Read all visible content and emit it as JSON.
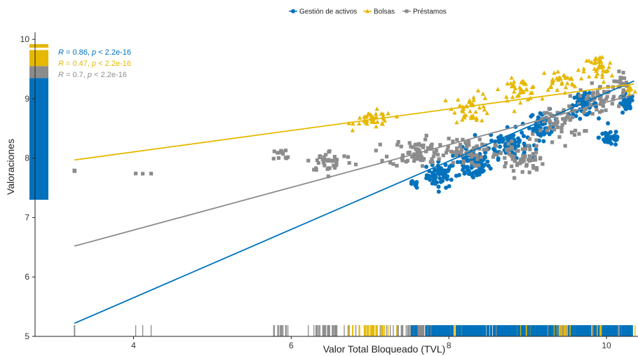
{
  "chart_data": {
    "type": "scatter",
    "xlabel": "Valor Total Bloqueado (TVL)",
    "ylabel": "Valoraciones",
    "xlim": [
      2.75,
      10.4
    ],
    "ylim": [
      5.0,
      10.12
    ],
    "xticks": [
      4,
      6,
      8,
      10
    ],
    "yticks": [
      5,
      6,
      7,
      8,
      9,
      10
    ],
    "grid": false,
    "legend_position": "top",
    "series": [
      {
        "name": "Gestión de activos",
        "color": "#0072BD",
        "marker": "circle",
        "trend": {
          "x0": 3.25,
          "y0": 5.22,
          "x1": 10.35,
          "y1": 9.3
        },
        "annotation": {
          "r": "0.86",
          "p": "< 2.2e-16"
        },
        "clusters": [
          {
            "cx": 7.9,
            "cy": 7.72,
            "sx": 0.15,
            "sy": 0.18,
            "n": 55
          },
          {
            "cx": 8.3,
            "cy": 7.9,
            "sx": 0.18,
            "sy": 0.22,
            "n": 90
          },
          {
            "cx": 8.75,
            "cy": 8.25,
            "sx": 0.2,
            "sy": 0.2,
            "n": 80
          },
          {
            "cx": 9.2,
            "cy": 8.55,
            "sx": 0.15,
            "sy": 0.2,
            "n": 60
          },
          {
            "cx": 9.7,
            "cy": 8.9,
            "sx": 0.15,
            "sy": 0.15,
            "n": 55
          },
          {
            "cx": 10.05,
            "cy": 8.35,
            "sx": 0.12,
            "sy": 0.12,
            "n": 40
          },
          {
            "cx": 10.25,
            "cy": 8.9,
            "sx": 0.08,
            "sy": 0.15,
            "n": 30
          },
          {
            "cx": 7.55,
            "cy": 7.55,
            "sx": 0.05,
            "sy": 0.05,
            "n": 8
          }
        ]
      },
      {
        "name": "Bolsas",
        "color": "#E6B800",
        "marker": "triangle",
        "trend": {
          "x0": 3.25,
          "y0": 7.97,
          "x1": 10.35,
          "y1": 9.25
        },
        "annotation": {
          "r": "0.47",
          "p": "< 2.2e-16"
        },
        "clusters": [
          {
            "cx": 7.05,
            "cy": 8.65,
            "sx": 0.2,
            "sy": 0.12,
            "n": 40
          },
          {
            "cx": 8.3,
            "cy": 8.85,
            "sx": 0.2,
            "sy": 0.2,
            "n": 40
          },
          {
            "cx": 8.9,
            "cy": 9.15,
            "sx": 0.2,
            "sy": 0.15,
            "n": 40
          },
          {
            "cx": 9.4,
            "cy": 9.3,
            "sx": 0.2,
            "sy": 0.15,
            "n": 35
          },
          {
            "cx": 9.9,
            "cy": 9.5,
            "sx": 0.15,
            "sy": 0.2,
            "n": 35
          },
          {
            "cx": 10.3,
            "cy": 9.15,
            "sx": 0.06,
            "sy": 0.12,
            "n": 12
          }
        ]
      },
      {
        "name": "Préstamos",
        "color": "#8C8C8C",
        "marker": "square",
        "trend": {
          "x0": 3.25,
          "y0": 6.52,
          "x1": 10.35,
          "y1": 9.07
        },
        "annotation": {
          "r": "0.7",
          "p": "< 2.2e-16"
        },
        "clusters": [
          {
            "cx": 3.25,
            "cy": 7.8,
            "sx": 0.01,
            "sy": 0.05,
            "n": 3
          },
          {
            "cx": 4.1,
            "cy": 7.74,
            "sx": 0.12,
            "sy": 0.02,
            "n": 3
          },
          {
            "cx": 5.9,
            "cy": 8.05,
            "sx": 0.12,
            "sy": 0.1,
            "n": 12
          },
          {
            "cx": 6.5,
            "cy": 7.95,
            "sx": 0.25,
            "sy": 0.15,
            "n": 40
          },
          {
            "cx": 7.6,
            "cy": 8.1,
            "sx": 0.3,
            "sy": 0.2,
            "n": 80
          },
          {
            "cx": 8.2,
            "cy": 8.1,
            "sx": 0.2,
            "sy": 0.2,
            "n": 50
          },
          {
            "cx": 8.9,
            "cy": 8.0,
            "sx": 0.25,
            "sy": 0.25,
            "n": 70
          },
          {
            "cx": 9.4,
            "cy": 8.6,
            "sx": 0.25,
            "sy": 0.25,
            "n": 60
          },
          {
            "cx": 9.9,
            "cy": 9.0,
            "sx": 0.2,
            "sy": 0.2,
            "n": 50
          },
          {
            "cx": 10.2,
            "cy": 9.3,
            "sx": 0.1,
            "sy": 0.15,
            "n": 20
          }
        ]
      }
    ]
  }
}
